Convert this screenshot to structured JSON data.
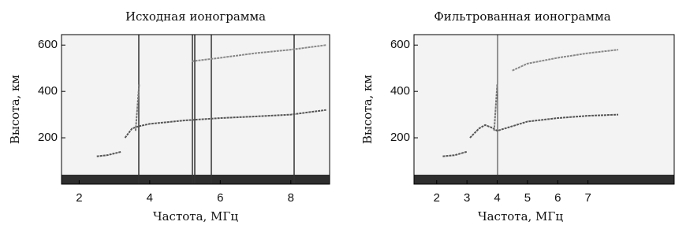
{
  "chart_data": [
    {
      "type": "line",
      "title": "Исходная ионограмма",
      "xlabel": "Частота, МГц",
      "ylabel": "Высота, км",
      "xlim": [
        1.5,
        9.1
      ],
      "ylim": [
        0,
        645
      ],
      "xticks": [
        2,
        4,
        6,
        8
      ],
      "yticks": [
        200,
        400,
        600
      ],
      "series": [
        {
          "color": "#555555",
          "x": [
            2.5,
            2.8,
            3.2
          ],
          "values": [
            120,
            125,
            140
          ]
        },
        {
          "color": "#555555",
          "x": [
            3.3,
            3.5,
            3.7,
            4,
            5,
            6,
            7,
            8,
            9
          ],
          "values": [
            200,
            240,
            250,
            260,
            275,
            285,
            292,
            300,
            320
          ]
        },
        {
          "color": "#777777",
          "x": [
            3.6,
            3.65,
            3.7
          ],
          "values": [
            230,
            330,
            430
          ]
        },
        {
          "color": "#888888",
          "x": [
            5.2,
            6,
            7,
            8,
            9
          ],
          "values": [
            530,
            545,
            565,
            580,
            600
          ]
        }
      ]
    },
    {
      "type": "line",
      "title": "Фильтрованная ионограмма",
      "xlabel": "Частота, МГц",
      "ylabel": "Высота, км",
      "xlim": [
        1.25,
        9.85
      ],
      "ylim": [
        0,
        645
      ],
      "xticks": [
        2,
        3,
        4,
        5,
        6,
        7
      ],
      "yticks": [
        200,
        400,
        600
      ],
      "series": [
        {
          "color": "#555555",
          "x": [
            2.2,
            2.6,
            3
          ],
          "values": [
            120,
            125,
            140
          ]
        },
        {
          "color": "#555555",
          "x": [
            3.1,
            3.4,
            3.6,
            3.8,
            4,
            5,
            6,
            7,
            8
          ],
          "values": [
            200,
            240,
            255,
            245,
            230,
            270,
            285,
            295,
            300
          ]
        },
        {
          "color": "#777777",
          "x": [
            3.9,
            3.95,
            4
          ],
          "values": [
            230,
            330,
            430
          ]
        },
        {
          "color": "#888888",
          "x": [
            4.5,
            5,
            6,
            7,
            8
          ],
          "values": [
            490,
            520,
            545,
            565,
            580
          ]
        }
      ]
    }
  ]
}
